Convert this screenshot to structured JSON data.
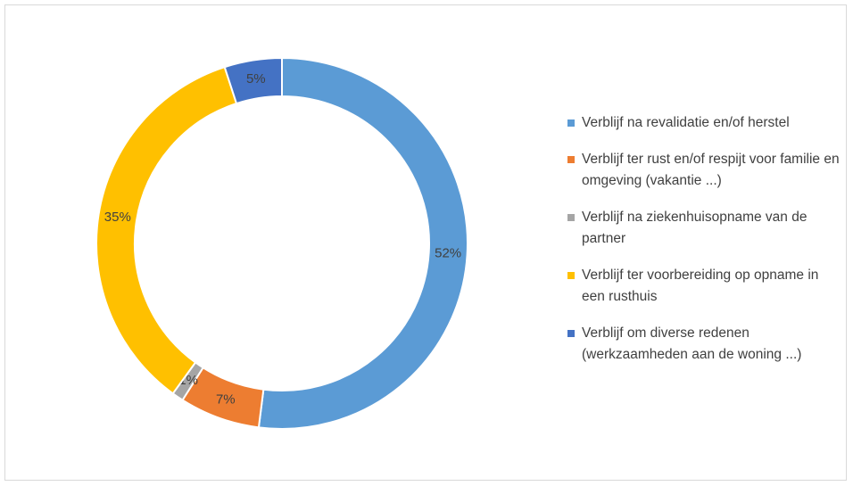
{
  "chart_data": {
    "type": "donut",
    "categories": [
      "Verblijf na revalidatie en/of herstel",
      "Verblijf ter rust en/of respijt voor familie en omgeving (vakantie ...)",
      "Verblijf na ziekenhuisopname van de partner",
      "Verblijf ter voorbereiding op opname in een rusthuis",
      "Verblijf om diverse redenen (werkzaamheden aan de woning ...)"
    ],
    "values": [
      52,
      7,
      1,
      35,
      5
    ],
    "value_labels": [
      "52%",
      "7%",
      "1%",
      "35%",
      "5%"
    ],
    "colors": [
      "#5b9bd5",
      "#ed7d31",
      "#a5a5a5",
      "#ffc000",
      "#4472c4"
    ],
    "legend": "right"
  }
}
